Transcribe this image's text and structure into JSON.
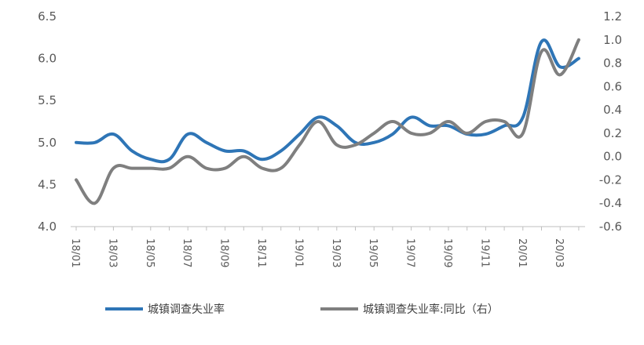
{
  "chart_data": {
    "type": "line",
    "x": [
      "18/01",
      "18/02",
      "18/03",
      "18/04",
      "18/05",
      "18/06",
      "18/07",
      "18/08",
      "18/09",
      "18/10",
      "18/11",
      "18/12",
      "19/01",
      "19/02",
      "19/03",
      "19/04",
      "19/05",
      "19/06",
      "19/07",
      "19/08",
      "19/09",
      "19/10",
      "19/11",
      "19/12",
      "20/01",
      "20/02",
      "20/03",
      "20/04"
    ],
    "x_tick_labels": [
      "18/01",
      "18/03",
      "18/05",
      "18/07",
      "18/09",
      "18/11",
      "19/01",
      "19/03",
      "19/05",
      "19/07",
      "19/09",
      "19/11",
      "20/01",
      "20/03"
    ],
    "series": [
      {
        "name": "城镇调查失业率",
        "axis": "left",
        "color": "#2e75b6",
        "values": [
          5.0,
          5.0,
          5.1,
          4.9,
          4.8,
          4.8,
          5.1,
          5.0,
          4.9,
          4.9,
          4.8,
          4.9,
          5.1,
          5.3,
          5.2,
          5.0,
          5.0,
          5.1,
          5.3,
          5.2,
          5.2,
          5.1,
          5.1,
          5.2,
          5.3,
          6.2,
          5.9,
          6.0
        ]
      },
      {
        "name": "城镇调查失业率:同比（右）",
        "axis": "right",
        "color": "#7f7f7f",
        "values": [
          -0.2,
          -0.4,
          -0.1,
          -0.1,
          -0.1,
          -0.1,
          0.0,
          -0.1,
          -0.1,
          0.0,
          -0.1,
          -0.1,
          0.1,
          0.3,
          0.1,
          0.1,
          0.2,
          0.3,
          0.2,
          0.2,
          0.3,
          0.2,
          0.3,
          0.3,
          0.2,
          0.9,
          0.7,
          1.0
        ]
      }
    ],
    "left_axis": {
      "min": 4.0,
      "max": 6.5,
      "ticks": [
        "4.0",
        "4.5",
        "5.0",
        "5.5",
        "6.0",
        "6.5"
      ]
    },
    "right_axis": {
      "min": -0.6,
      "max": 1.2,
      "ticks": [
        "-0.6",
        "-0.4",
        "-0.2",
        "0.0",
        "0.2",
        "0.4",
        "0.6",
        "0.8",
        "1.0",
        "1.2"
      ]
    },
    "grid": false,
    "legend_position": "bottom"
  }
}
